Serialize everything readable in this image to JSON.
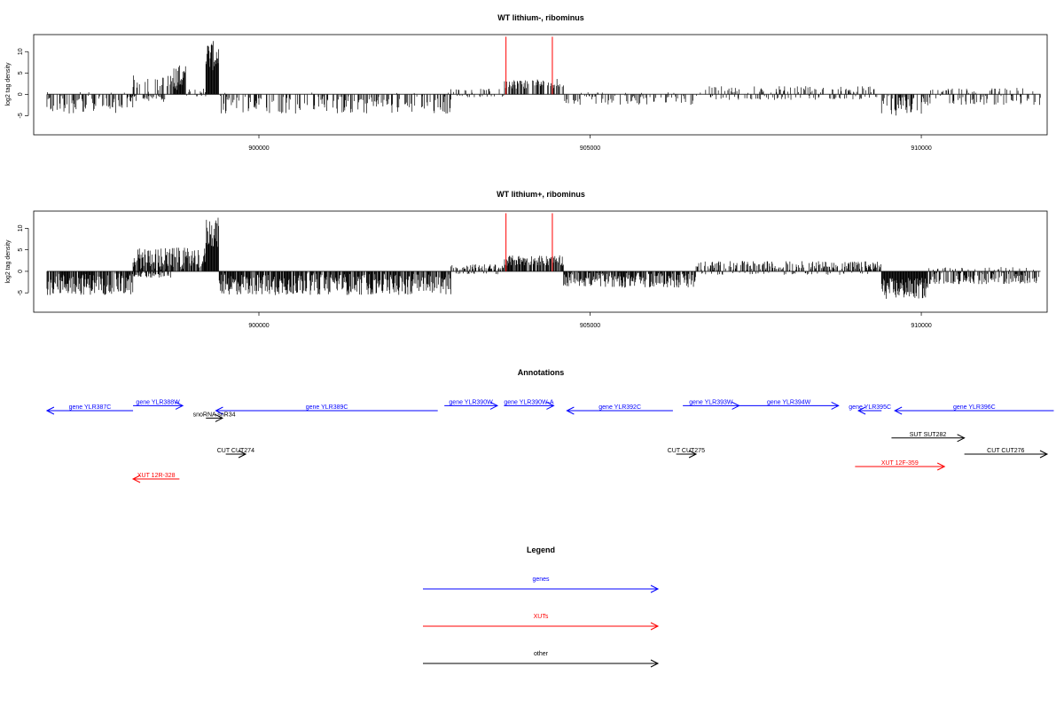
{
  "colors": {
    "genes": "#0000ff",
    "xuts": "#ff0000",
    "other": "#000000",
    "density": "#000000",
    "marker": "#ff0000"
  },
  "chart_data": [
    {
      "type": "bar",
      "title": "WT lithium-, ribominus",
      "xlabel": "",
      "ylabel": "log2 tag density",
      "xlim": [
        896600,
        911900
      ],
      "ylim": [
        -9.5,
        14
      ],
      "x_ticks": [
        900000,
        905000,
        910000
      ],
      "y_ticks": [
        -5,
        0,
        5,
        10
      ],
      "grid": false,
      "markers_x": [
        903730,
        904430
      ],
      "regions": [
        {
          "from": 896800,
          "to": 898100,
          "base": -2,
          "amp": 2.5
        },
        {
          "from": 898050,
          "to": 898600,
          "base": -1,
          "amp": 1
        },
        {
          "from": 898100,
          "to": 898700,
          "base": 2,
          "amp": 2.5
        },
        {
          "from": 898700,
          "to": 898900,
          "base": 4,
          "amp": 3
        },
        {
          "from": 898900,
          "to": 899200,
          "base": 0.5,
          "amp": 1
        },
        {
          "from": 899200,
          "to": 899400,
          "base": 9,
          "amp": 3.5
        },
        {
          "from": 899400,
          "to": 902900,
          "base": -2,
          "amp": 2.5
        },
        {
          "from": 902900,
          "to": 903700,
          "base": 0.3,
          "amp": 1
        },
        {
          "from": 903700,
          "to": 904600,
          "base": 2.5,
          "amp": 1.2
        },
        {
          "from": 904600,
          "to": 906600,
          "base": -1,
          "amp": 1.5
        },
        {
          "from": 906600,
          "to": 909400,
          "base": 0.3,
          "amp": 1.6
        },
        {
          "from": 909400,
          "to": 910100,
          "base": -2.5,
          "amp": 2.5
        },
        {
          "from": 910100,
          "to": 911800,
          "base": -0.5,
          "amp": 2
        }
      ],
      "sparsity": 0.55
    },
    {
      "type": "bar",
      "title": "WT lithium+, ribominus",
      "xlabel": "",
      "ylabel": "log2 tag density",
      "xlim": [
        896600,
        911900
      ],
      "ylim": [
        -9.5,
        14
      ],
      "x_ticks": [
        900000,
        905000,
        910000
      ],
      "y_ticks": [
        -5,
        0,
        5,
        10
      ],
      "grid": false,
      "markers_x": [
        903730,
        904430
      ],
      "regions": [
        {
          "from": 896800,
          "to": 898100,
          "base": -3,
          "amp": 2.5
        },
        {
          "from": 898100,
          "to": 898700,
          "base": -0.5,
          "amp": 1
        },
        {
          "from": 898100,
          "to": 899200,
          "base": 3,
          "amp": 2.5
        },
        {
          "from": 899200,
          "to": 899400,
          "base": 9,
          "amp": 3.5
        },
        {
          "from": 899400,
          "to": 902900,
          "base": -3,
          "amp": 2.5
        },
        {
          "from": 902900,
          "to": 903700,
          "base": 0.5,
          "amp": 1.2
        },
        {
          "from": 903700,
          "to": 904600,
          "base": 2.5,
          "amp": 1.2
        },
        {
          "from": 904600,
          "to": 906600,
          "base": -2,
          "amp": 1.8
        },
        {
          "from": 906600,
          "to": 909400,
          "base": 0.8,
          "amp": 1.6
        },
        {
          "from": 909400,
          "to": 910100,
          "base": -4,
          "amp": 2.5
        },
        {
          "from": 910100,
          "to": 911800,
          "base": -1,
          "amp": 2
        }
      ],
      "sparsity": 0.2
    }
  ],
  "annotations": {
    "title": "Annotations",
    "features": [
      {
        "label": "gene YLR387C",
        "kind": "genes",
        "start": 896800,
        "end": 898100,
        "dir": -1,
        "row": 0
      },
      {
        "label": "gene YLR388W",
        "kind": "genes",
        "start": 898100,
        "end": 898850,
        "dir": 1,
        "row": -0.4
      },
      {
        "label": "gene YLR389C",
        "kind": "genes",
        "start": 899350,
        "end": 902700,
        "dir": -1,
        "row": 0
      },
      {
        "label": "gene YLR390W",
        "kind": "genes",
        "start": 902800,
        "end": 903600,
        "dir": 1,
        "row": -0.4
      },
      {
        "label": "gene YLR390W-A",
        "kind": "genes",
        "start": 903700,
        "end": 904450,
        "dir": 1,
        "row": -0.4
      },
      {
        "label": "gene YLR392C",
        "kind": "genes",
        "start": 904650,
        "end": 906250,
        "dir": -1,
        "row": 0
      },
      {
        "label": "gene YLR393W",
        "kind": "genes",
        "start": 906400,
        "end": 907250,
        "dir": 1,
        "row": -0.4
      },
      {
        "label": "gene YLR394W",
        "kind": "genes",
        "start": 907250,
        "end": 908750,
        "dir": 1,
        "row": -0.4
      },
      {
        "label": "gene YLR395C",
        "kind": "genes",
        "start": 909050,
        "end": 909400,
        "dir": -1,
        "row": 0
      },
      {
        "label": "gene YLR396C",
        "kind": "genes",
        "start": 909600,
        "end": 912000,
        "dir": -1,
        "row": 0
      },
      {
        "label": "snoRNA snR34",
        "kind": "other",
        "start": 899200,
        "end": 899450,
        "dir": 1,
        "row": 0.6
      },
      {
        "label": "SUT SUT282",
        "kind": "other",
        "start": 909550,
        "end": 910650,
        "dir": 1,
        "row": 2.2
      },
      {
        "label": "CUT CUT274",
        "kind": "other",
        "start": 899500,
        "end": 899800,
        "dir": 1,
        "row": 3.5
      },
      {
        "label": "CUT CUT275",
        "kind": "other",
        "start": 906300,
        "end": 906600,
        "dir": 1,
        "row": 3.5
      },
      {
        "label": "CUT CUT276",
        "kind": "other",
        "start": 910650,
        "end": 911900,
        "dir": 1,
        "row": 3.5
      },
      {
        "label": "XUT 12R-328",
        "kind": "xuts",
        "start": 898100,
        "end": 898800,
        "dir": -1,
        "row": 5.5
      },
      {
        "label": "XUT 12F-359",
        "kind": "xuts",
        "start": 909000,
        "end": 910350,
        "dir": 1,
        "row": 4.5
      }
    ]
  },
  "legend": {
    "title": "Legend",
    "items": [
      {
        "label": "genes",
        "kind": "genes"
      },
      {
        "label": "XUTs",
        "kind": "xuts"
      },
      {
        "label": "other",
        "kind": "other"
      }
    ]
  }
}
